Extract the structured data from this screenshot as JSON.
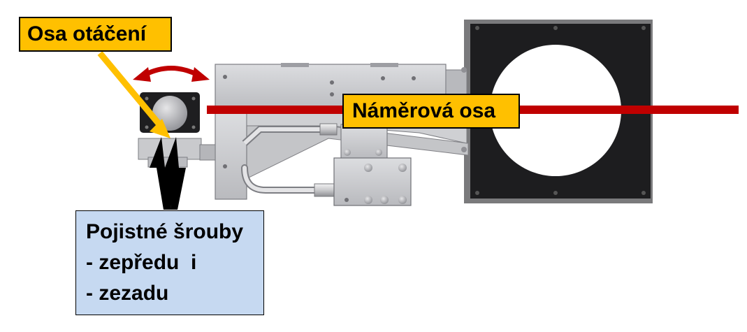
{
  "labels": {
    "rotation_axis": "Osa otáčení",
    "measuring_axis": "Náměrová osa",
    "locking_screws": {
      "title": "Pojistné šrouby",
      "line1": "- zepředu  i",
      "line2": "- zezadu"
    }
  },
  "colors": {
    "callout_yellow": "#ffc000",
    "callout_blue": "#c6d9f1",
    "axis_red": "#c00000",
    "rotation_arrow_red": "#c00000",
    "pointer_yellow": "#ffc000",
    "pointer_black": "#000000",
    "frame_black": "#1a1a1a",
    "metal_gray": "#c8c9cc"
  }
}
